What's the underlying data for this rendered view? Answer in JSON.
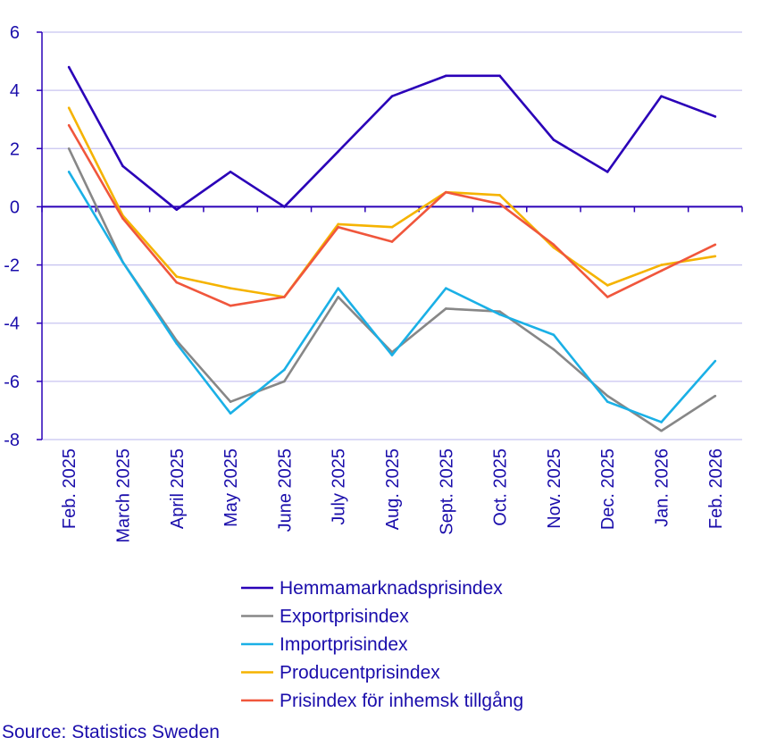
{
  "chart_data": {
    "type": "line",
    "title": "",
    "xlabel": "",
    "ylabel": "",
    "ylim": [
      -8,
      6
    ],
    "yticks": [
      -8,
      -6,
      -4,
      -2,
      0,
      2,
      4,
      6
    ],
    "ytick_labels": [
      "-8",
      "-6",
      "-4",
      "-2",
      "0",
      "2",
      "4",
      "6"
    ],
    "grid": "horizontal",
    "legend_placement": "bottom",
    "categories": [
      "Feb. 2025",
      "March 2025",
      "April 2025",
      "May 2025",
      "June 2025",
      "July 2025",
      "Aug. 2025",
      "Sept. 2025",
      "Oct. 2025",
      "Nov. 2025",
      "Dec. 2025",
      "Jan. 2026",
      "Feb. 2026"
    ],
    "series": [
      {
        "name": "Hemmamarknadsprisindex",
        "color": "#2a00b8",
        "values": [
          4.8,
          1.4,
          -0.1,
          1.2,
          0.0,
          1.9,
          3.8,
          4.5,
          4.5,
          2.3,
          1.2,
          3.8,
          3.1
        ]
      },
      {
        "name": "Exportprisindex",
        "color": "#878787",
        "values": [
          2.0,
          -1.9,
          -4.6,
          -6.7,
          -6.0,
          -3.1,
          -5.0,
          -3.5,
          -3.6,
          -4.9,
          -6.5,
          -7.7,
          -6.5
        ]
      },
      {
        "name": "Importprisindex",
        "color": "#1ab0e6",
        "values": [
          1.2,
          -1.9,
          -4.7,
          -7.1,
          -5.6,
          -2.8,
          -5.1,
          -2.8,
          -3.7,
          -4.4,
          -6.7,
          -7.4,
          -5.3
        ]
      },
      {
        "name": "Producentprisindex",
        "color": "#f5b300",
        "values": [
          3.4,
          -0.3,
          -2.4,
          -2.8,
          -3.1,
          -0.6,
          -0.7,
          0.5,
          0.4,
          -1.4,
          -2.7,
          -2.0,
          -1.7
        ]
      },
      {
        "name": "Prisindex för inhemsk tillgång",
        "color": "#f0563c",
        "values": [
          2.8,
          -0.4,
          -2.6,
          -3.4,
          -3.1,
          -0.7,
          -1.2,
          0.5,
          0.1,
          -1.3,
          -3.1,
          -2.2,
          -1.3
        ]
      }
    ],
    "colors": {
      "axis": "#2a00b8",
      "grid": "#c8c4f0",
      "text": "#1a0dab"
    }
  },
  "source": "Source: Statistics Sweden"
}
